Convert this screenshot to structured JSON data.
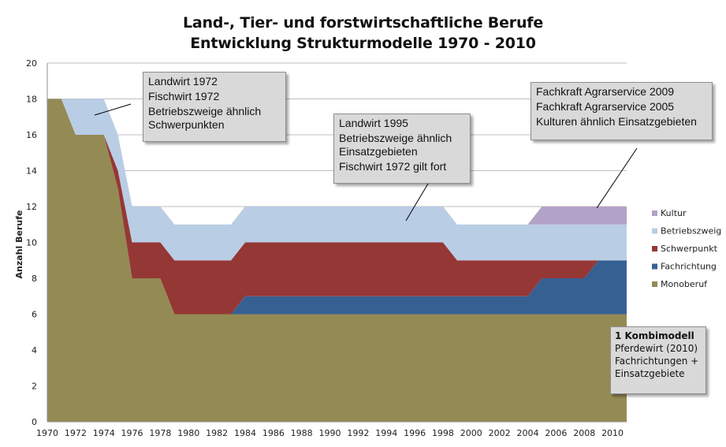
{
  "chart_data": {
    "type": "area",
    "stacked": true,
    "title": "Land-, Tier- und forstwirtschaftliche Berufe",
    "subtitle": "Entwicklung Strukturmodelle 1970 - 2010",
    "ylabel": "Anzahl Berufe",
    "xlabel": "",
    "xlim": [
      1970,
      2011
    ],
    "ylim": [
      0,
      20
    ],
    "y_ticks": [
      0,
      2,
      4,
      6,
      8,
      10,
      12,
      14,
      16,
      18,
      20
    ],
    "x_ticks": [
      1970,
      1972,
      1974,
      1976,
      1978,
      1980,
      1982,
      1984,
      1986,
      1988,
      1990,
      1992,
      1994,
      1996,
      1998,
      2000,
      2002,
      2004,
      2006,
      2008,
      2010
    ],
    "grid": "horizontal",
    "legend_position": "right",
    "x": [
      1970,
      1971,
      1972,
      1973,
      1974,
      1975,
      1976,
      1977,
      1978,
      1979,
      1980,
      1981,
      1982,
      1983,
      1984,
      1985,
      1986,
      1987,
      1988,
      1989,
      1990,
      1991,
      1992,
      1993,
      1994,
      1995,
      1996,
      1997,
      1998,
      1999,
      2000,
      2001,
      2002,
      2003,
      2004,
      2005,
      2006,
      2007,
      2008,
      2009,
      2010,
      2011
    ],
    "series": [
      {
        "name": "Monoberuf",
        "color": "#948a54",
        "values": [
          18,
          18,
          16,
          16,
          16,
          13,
          8,
          8,
          8,
          6,
          6,
          6,
          6,
          6,
          6,
          6,
          6,
          6,
          6,
          6,
          6,
          6,
          6,
          6,
          6,
          6,
          6,
          6,
          6,
          6,
          6,
          6,
          6,
          6,
          6,
          6,
          6,
          6,
          6,
          6,
          6,
          6
        ]
      },
      {
        "name": "Fachrichtung",
        "color": "#376092",
        "values": [
          0,
          0,
          0,
          0,
          0,
          0,
          0,
          0,
          0,
          0,
          0,
          0,
          0,
          0,
          1,
          1,
          1,
          1,
          1,
          1,
          1,
          1,
          1,
          1,
          1,
          1,
          1,
          1,
          1,
          1,
          1,
          1,
          1,
          1,
          1,
          2,
          2,
          2,
          2,
          3,
          3,
          3
        ]
      },
      {
        "name": "Schwerpunkt",
        "color": "#953735",
        "values": [
          0,
          0,
          0,
          0,
          0,
          1,
          2,
          2,
          2,
          3,
          3,
          3,
          3,
          3,
          3,
          3,
          3,
          3,
          3,
          3,
          3,
          3,
          3,
          3,
          3,
          3,
          3,
          3,
          3,
          2,
          2,
          2,
          2,
          2,
          2,
          1,
          1,
          1,
          1,
          0,
          0,
          0
        ]
      },
      {
        "name": "Betriebszweig",
        "color": "#b9cde5",
        "values": [
          0,
          0,
          2,
          2,
          2,
          2,
          2,
          2,
          2,
          2,
          2,
          2,
          2,
          2,
          2,
          2,
          2,
          2,
          2,
          2,
          2,
          2,
          2,
          2,
          2,
          2,
          2,
          2,
          2,
          2,
          2,
          2,
          2,
          2,
          2,
          2,
          2,
          2,
          2,
          2,
          2,
          2
        ]
      },
      {
        "name": "Kultur",
        "color": "#b3a2c7",
        "values": [
          0,
          0,
          0,
          0,
          0,
          0,
          0,
          0,
          0,
          0,
          0,
          0,
          0,
          0,
          0,
          0,
          0,
          0,
          0,
          0,
          0,
          0,
          0,
          0,
          0,
          0,
          0,
          0,
          0,
          0,
          0,
          0,
          0,
          0,
          0,
          1,
          1,
          1,
          1,
          1,
          1,
          1
        ]
      }
    ],
    "legend_order": [
      "Kultur",
      "Betriebszweig",
      "Schwerpunkt",
      "Fachrichtung",
      "Monoberuf"
    ],
    "annotations": [
      {
        "id": "a1972",
        "lines": [
          "Landwirt 1972",
          "Fischwirt 1972",
          "Betriebszweige ähnlich",
          "Schwerpunkten"
        ]
      },
      {
        "id": "a1995",
        "lines": [
          "Landwirt 1995",
          "Betriebszweige ähnlich",
          "Einsatzgebieten",
          "Fischwirt 1972 gilt fort"
        ]
      },
      {
        "id": "a2009",
        "lines": [
          "Fachkraft Agrarservice 2009",
          "Fachkraft Agrarservice 2005",
          "Kulturen ähnlich Einsatzgebieten"
        ]
      },
      {
        "id": "akombi",
        "heading": "1 Kombimodell",
        "lines": [
          "Pferdewirt (2010)",
          "Fachrichtungen +",
          "Einsatzgebiete"
        ]
      }
    ]
  }
}
